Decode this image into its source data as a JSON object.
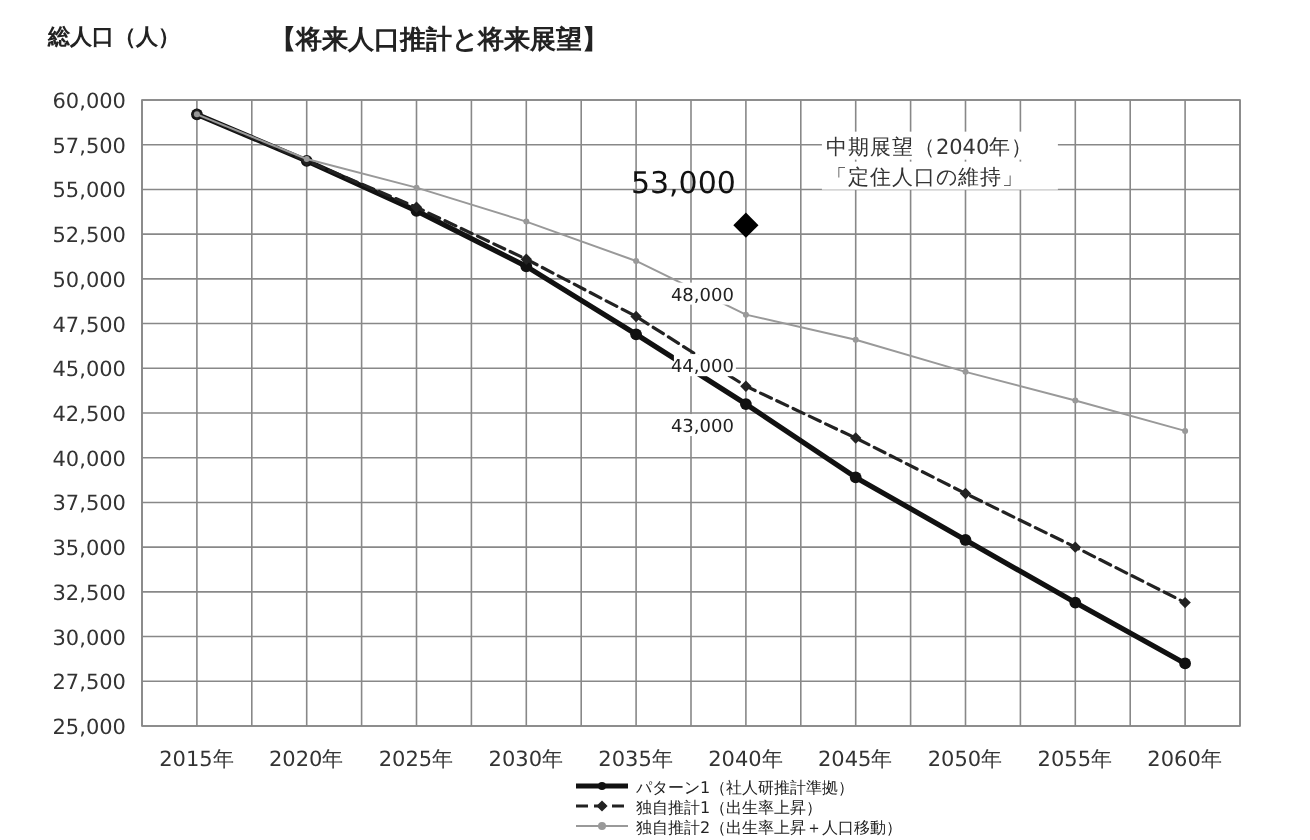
{
  "chart_data": {
    "type": "line",
    "title": "【将来人口推計と将来展望】",
    "ylabel": "総人口（人）",
    "categories": [
      "2015年",
      "2020年",
      "2025年",
      "2030年",
      "2035年",
      "2040年",
      "2045年",
      "2050年",
      "2055年",
      "2060年"
    ],
    "ylim": [
      25000,
      60000
    ],
    "yticks": [
      {
        "value": 25000,
        "label": "25,000"
      },
      {
        "value": 27500,
        "label": "27,500"
      },
      {
        "value": 30000,
        "label": "30,000"
      },
      {
        "value": 32500,
        "label": "32,500"
      },
      {
        "value": 35000,
        "label": "35,000"
      },
      {
        "value": 37500,
        "label": "37,500"
      },
      {
        "value": 40000,
        "label": "40,000"
      },
      {
        "value": 42500,
        "label": "42,500"
      },
      {
        "value": 45000,
        "label": "45,000"
      },
      {
        "value": 47500,
        "label": "47,500"
      },
      {
        "value": 50000,
        "label": "50,000"
      },
      {
        "value": 52500,
        "label": "52,500"
      },
      {
        "value": 55000,
        "label": "55,000"
      },
      {
        "value": 57500,
        "label": "57,500"
      },
      {
        "value": 60000,
        "label": "60,000"
      }
    ],
    "grid": true,
    "legend": "bottom",
    "series": [
      {
        "name": "パターン1（社人研推計準拠）",
        "color": "#111111",
        "marker": "circle",
        "line_style": "solid",
        "values": [
          59200,
          56600,
          53800,
          50700,
          46900,
          43000,
          38900,
          35400,
          31900,
          28500
        ],
        "value_labels": [
          null,
          null,
          null,
          null,
          null,
          "43,000",
          null,
          null,
          null,
          null
        ]
      },
      {
        "name": "独自推計1（出生率上昇）",
        "color": "#222222",
        "marker": "diamond",
        "line_style": "dashed",
        "values": [
          59200,
          56600,
          54000,
          51100,
          47900,
          44000,
          41100,
          38000,
          35000,
          31900
        ],
        "value_labels": [
          null,
          null,
          null,
          null,
          null,
          "44,000",
          null,
          null,
          null,
          null
        ]
      },
      {
        "name": "独自推計2（出生率上昇＋人口移動）",
        "color": "#999999",
        "marker": "circle",
        "line_style": "solid",
        "values": [
          59200,
          56700,
          55100,
          53200,
          51000,
          48000,
          46600,
          44800,
          43200,
          41500
        ],
        "value_labels": [
          null,
          null,
          null,
          null,
          null,
          "48,000",
          null,
          null,
          null,
          null
        ]
      },
      {
        "type": "scatter",
        "color": "#000000",
        "marker": "diamond",
        "x": [
          "2040年"
        ],
        "values": [
          53000
        ],
        "value_labels": [
          "53,000"
        ]
      }
    ],
    "annotations": [
      "中期展望（2040年）",
      "「定住人口の維持」"
    ]
  }
}
